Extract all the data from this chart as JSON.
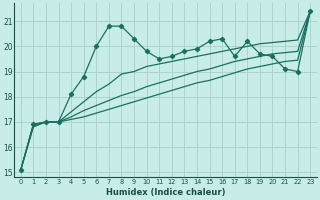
{
  "xlabel": "Humidex (Indice chaleur)",
  "bg_color": "#c8ece8",
  "grid_color": "#aad4cc",
  "line_color": "#1a7060",
  "xlim": [
    -0.5,
    23.5
  ],
  "ylim": [
    14.8,
    21.7
  ],
  "yticks": [
    15,
    16,
    17,
    18,
    19,
    20,
    21
  ],
  "xticks": [
    0,
    1,
    2,
    3,
    4,
    5,
    6,
    7,
    8,
    9,
    10,
    11,
    12,
    13,
    14,
    15,
    16,
    17,
    18,
    19,
    20,
    21,
    22,
    23
  ],
  "series_marked": {
    "x": [
      0,
      1,
      2,
      3,
      4,
      5,
      6,
      7,
      8,
      9,
      10,
      11,
      12,
      13,
      14,
      15,
      16,
      17,
      18,
      19,
      20,
      21,
      22,
      23
    ],
    "y": [
      15.1,
      16.9,
      17.0,
      17.0,
      18.1,
      18.8,
      20.0,
      20.8,
      20.8,
      20.3,
      19.8,
      19.5,
      19.6,
      19.8,
      19.9,
      20.2,
      20.3,
      19.6,
      20.2,
      19.7,
      19.6,
      19.1,
      19.0,
      21.4
    ]
  },
  "series_upper": {
    "x": [
      0,
      1,
      2,
      3,
      4,
      5,
      6,
      7,
      8,
      9,
      10,
      11,
      12,
      13,
      14,
      15,
      16,
      17,
      18,
      19,
      20,
      21,
      22,
      23
    ],
    "y": [
      15.1,
      16.9,
      17.0,
      17.0,
      17.4,
      17.8,
      18.2,
      18.5,
      18.9,
      19.0,
      19.2,
      19.3,
      19.4,
      19.5,
      19.6,
      19.7,
      19.8,
      19.9,
      20.0,
      20.1,
      20.15,
      20.2,
      20.25,
      21.4
    ]
  },
  "series_mid": {
    "x": [
      0,
      1,
      2,
      3,
      4,
      5,
      6,
      7,
      8,
      9,
      10,
      11,
      12,
      13,
      14,
      15,
      16,
      17,
      18,
      19,
      20,
      21,
      22,
      23
    ],
    "y": [
      15.1,
      16.85,
      17.0,
      17.0,
      17.2,
      17.45,
      17.65,
      17.85,
      18.05,
      18.2,
      18.4,
      18.55,
      18.7,
      18.85,
      19.0,
      19.1,
      19.25,
      19.4,
      19.5,
      19.6,
      19.7,
      19.75,
      19.8,
      21.4
    ]
  },
  "series_lower": {
    "x": [
      0,
      1,
      2,
      3,
      4,
      5,
      6,
      7,
      8,
      9,
      10,
      11,
      12,
      13,
      14,
      15,
      16,
      17,
      18,
      19,
      20,
      21,
      22,
      23
    ],
    "y": [
      15.1,
      16.8,
      17.0,
      17.0,
      17.1,
      17.2,
      17.35,
      17.5,
      17.65,
      17.8,
      17.95,
      18.1,
      18.25,
      18.4,
      18.55,
      18.65,
      18.8,
      18.95,
      19.1,
      19.2,
      19.3,
      19.4,
      19.45,
      21.4
    ]
  }
}
